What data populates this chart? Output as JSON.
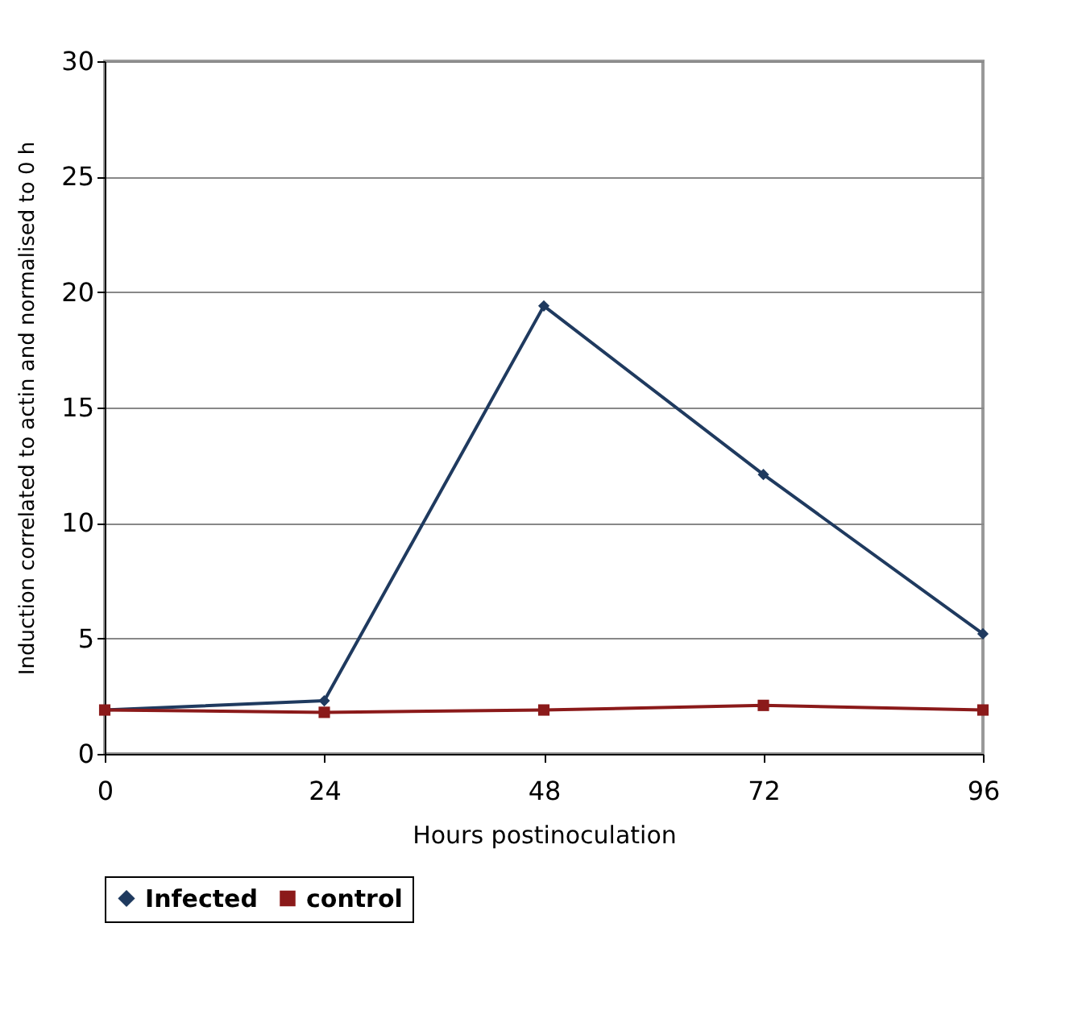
{
  "chart_data": {
    "type": "line",
    "xlabel": "Hours postinoculation",
    "ylabel": "Induction correlated to actin and normalised to 0 h",
    "x": [
      0,
      24,
      48,
      72,
      96
    ],
    "series": [
      {
        "name": "Infected",
        "color": "#1f3a5f",
        "marker": "diamond",
        "values": [
          1.9,
          2.3,
          19.4,
          12.1,
          5.2
        ]
      },
      {
        "name": "control",
        "color": "#8b1a1a",
        "marker": "square",
        "values": [
          1.9,
          1.8,
          1.9,
          2.1,
          1.9
        ]
      }
    ],
    "xlim": [
      0,
      96
    ],
    "xticks": [
      0,
      24,
      48,
      72,
      96
    ],
    "ylim": [
      0,
      30
    ],
    "yticks": [
      0,
      5,
      10,
      15,
      20,
      25,
      30
    ],
    "grid": "y",
    "legend": "bottom",
    "line_style": "solid"
  }
}
